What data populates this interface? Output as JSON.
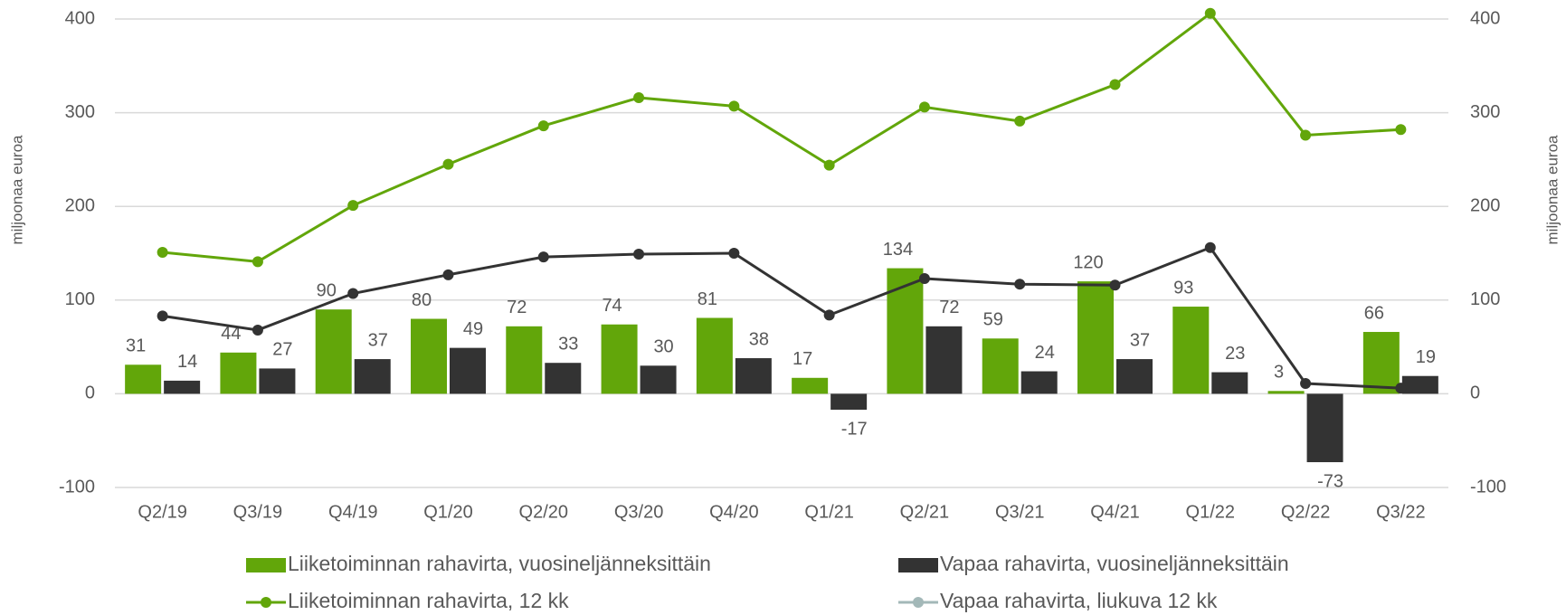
{
  "chart_data": {
    "type": "bar",
    "y_label": "miljoonaa euroa",
    "y2_label": "miljoonaa euroa",
    "categories": [
      "Q2/19",
      "Q3/19",
      "Q4/19",
      "Q1/20",
      "Q2/20",
      "Q3/20",
      "Q4/20",
      "Q1/21",
      "Q2/21",
      "Q3/21",
      "Q4/21",
      "Q1/22",
      "Q2/22",
      "Q3/22"
    ],
    "series": [
      {
        "name": "Liiketoiminnan rahavirta, vuosineljänneksittäin",
        "type": "bar",
        "color": "#62a60a",
        "values": [
          31,
          44,
          90,
          80,
          72,
          74,
          81,
          17,
          134,
          59,
          120,
          93,
          3,
          66
        ]
      },
      {
        "name": "Vapaa rahavirta, vuosineljänneksittäin",
        "type": "bar",
        "color": "#333333",
        "values": [
          14,
          27,
          37,
          49,
          33,
          30,
          38,
          -17,
          72,
          24,
          37,
          23,
          -73,
          19
        ]
      },
      {
        "name": "Liiketoiminnan rahavirta, 12 kk",
        "type": "line",
        "color": "#62a60a",
        "values": [
          151,
          141,
          201,
          245,
          286,
          316,
          307,
          244,
          306,
          291,
          330,
          406,
          276,
          282
        ]
      },
      {
        "name": "Vapaa rahavirta, liukuva 12 kk",
        "type": "line",
        "color": "#333333",
        "legend_color": "#a3b8b8",
        "values": [
          83,
          68,
          107,
          127,
          146,
          149,
          150,
          84,
          123,
          117,
          116,
          156,
          11,
          6
        ]
      }
    ],
    "ylim": [
      -100,
      400
    ],
    "yticks": [
      -100,
      0,
      100,
      200,
      300,
      400
    ],
    "y2lim": [
      -100,
      400
    ],
    "y2ticks": [
      -100,
      0,
      100,
      200,
      300,
      400
    ],
    "grid": true,
    "legend": "bottom"
  }
}
